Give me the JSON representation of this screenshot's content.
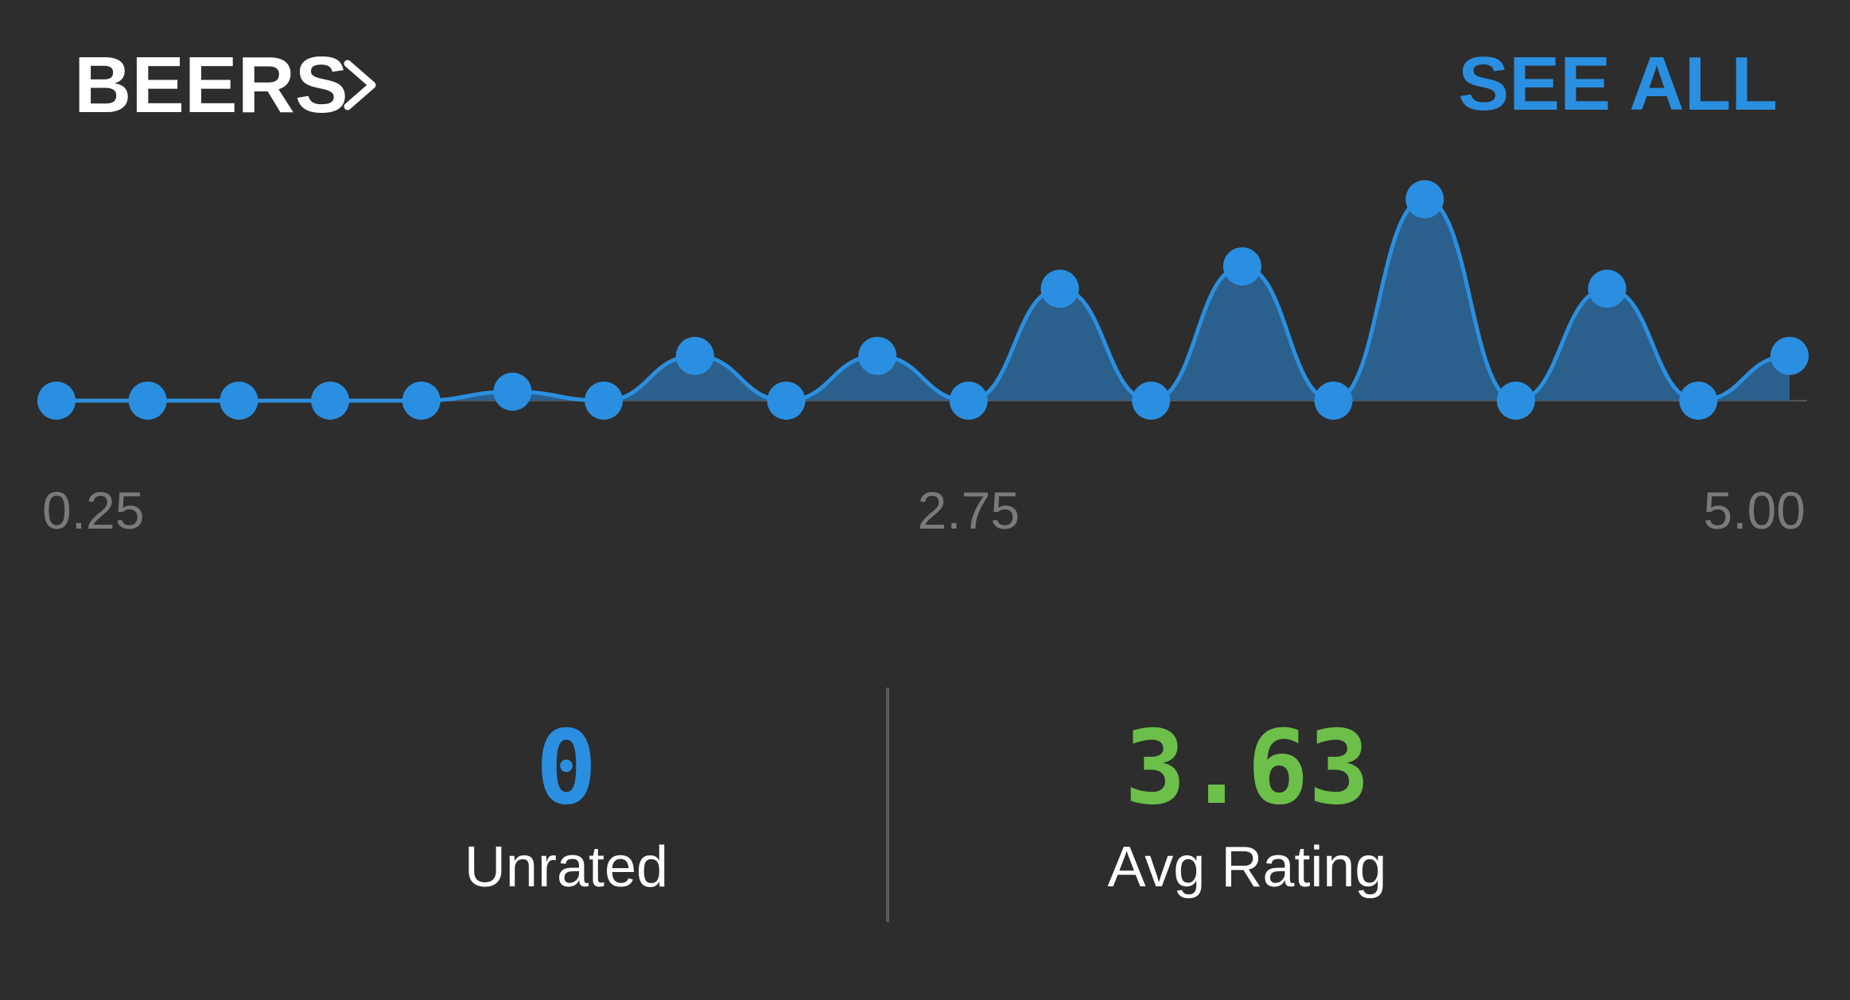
{
  "header": {
    "title": "BEERS",
    "link": "SEE ALL"
  },
  "chart_data": {
    "type": "area",
    "x": [
      0.25,
      0.5,
      0.75,
      1.0,
      1.25,
      1.5,
      1.75,
      2.0,
      2.25,
      2.5,
      2.75,
      3.0,
      3.25,
      3.5,
      3.75,
      4.0,
      4.25,
      4.5,
      4.75,
      5.0
    ],
    "values": [
      0,
      0,
      0,
      0,
      0,
      0.4,
      0,
      2,
      0,
      2,
      0,
      5,
      0,
      6,
      0,
      9,
      0,
      5,
      0,
      2
    ],
    "color": "#2a8fe0",
    "fill_color": "#2b5f8c",
    "xlim": [
      0.25,
      5.0
    ],
    "ylim": [
      0,
      9.2
    ],
    "xticks": [
      0.25,
      2.75,
      {
        "value": 5.0,
        "label": "5.00"
      }
    ]
  },
  "stats": [
    {
      "value": 0,
      "label": "Unrated",
      "color": "#2a8fe0"
    },
    {
      "value": 3.63,
      "label": "Avg Rating",
      "color": "#6cc04a"
    }
  ]
}
